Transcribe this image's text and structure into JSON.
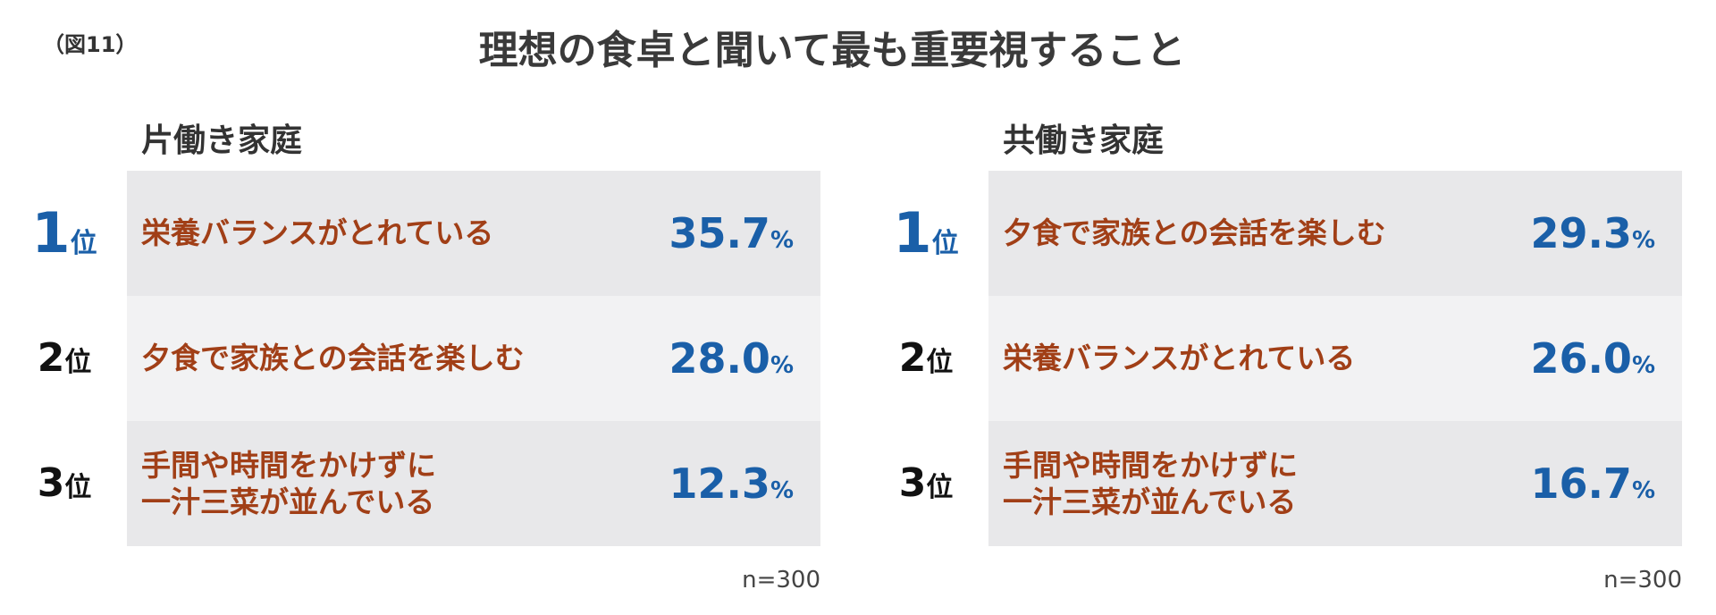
{
  "figure_label": "（図11）",
  "title": "理想の食卓と聞いて最も重要視すること",
  "panels": [
    {
      "subtitle": "片働き家庭",
      "note": "n=300",
      "rows": [
        {
          "rank": "1",
          "rank_suffix": "位",
          "item": "栄養バランスがとれている",
          "value": "35.7",
          "unit": "%"
        },
        {
          "rank": "2",
          "rank_suffix": "位",
          "item": "夕食で家族との会話を楽しむ",
          "value": "28.0",
          "unit": "%"
        },
        {
          "rank": "3",
          "rank_suffix": "位",
          "item": "手間や時間をかけずに\n一汁三菜が並んでいる",
          "value": "12.3",
          "unit": "%"
        }
      ]
    },
    {
      "subtitle": "共働き家庭",
      "note": "n=300",
      "rows": [
        {
          "rank": "1",
          "rank_suffix": "位",
          "item": "夕食で家族との会話を楽しむ",
          "value": "29.3",
          "unit": "%"
        },
        {
          "rank": "2",
          "rank_suffix": "位",
          "item": "栄養バランスがとれている",
          "value": "26.0",
          "unit": "%"
        },
        {
          "rank": "3",
          "rank_suffix": "位",
          "item": "手間や時間をかけずに\n一汁三菜が並んでいる",
          "value": "16.7",
          "unit": "%"
        }
      ]
    }
  ]
}
